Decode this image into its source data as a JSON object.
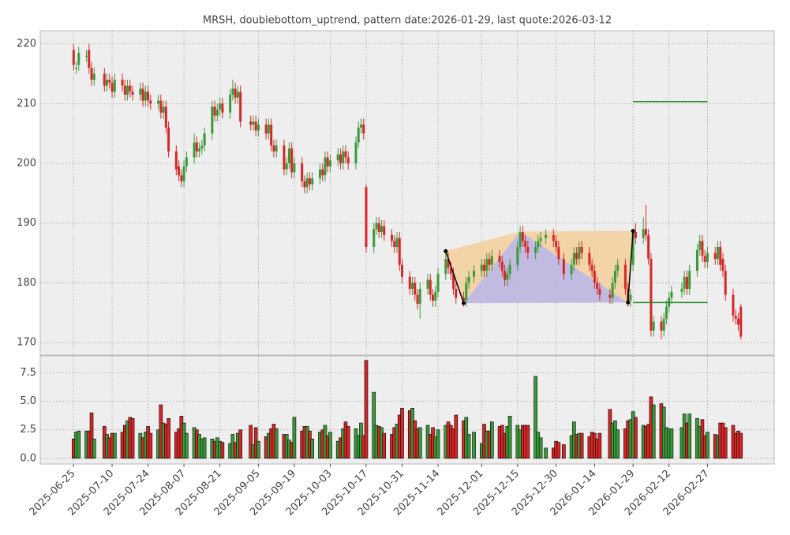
{
  "chart_data": {
    "type": "candlestick",
    "title": "MRSH, doublebottom_uptrend, pattern date:2026-01-29, last quote:2026-03-12",
    "x": [
      "2025-06-25",
      "2025-06-26",
      "2025-06-27",
      "2025-06-30",
      "2025-07-01",
      "2025-07-02",
      "2025-07-03",
      "2025-07-07",
      "2025-07-08",
      "2025-07-09",
      "2025-07-10",
      "2025-07-11",
      "2025-07-14",
      "2025-07-15",
      "2025-07-16",
      "2025-07-17",
      "2025-07-18",
      "2025-07-21",
      "2025-07-22",
      "2025-07-23",
      "2025-07-24",
      "2025-07-25",
      "2025-07-28",
      "2025-07-29",
      "2025-07-30",
      "2025-07-31",
      "2025-08-01",
      "2025-08-04",
      "2025-08-05",
      "2025-08-06",
      "2025-08-07",
      "2025-08-08",
      "2025-08-11",
      "2025-08-12",
      "2025-08-13",
      "2025-08-14",
      "2025-08-15",
      "2025-08-18",
      "2025-08-19",
      "2025-08-20",
      "2025-08-21",
      "2025-08-22",
      "2025-08-25",
      "2025-08-26",
      "2025-08-27",
      "2025-08-28",
      "2025-08-29",
      "2025-09-02",
      "2025-09-03",
      "2025-09-04",
      "2025-09-05",
      "2025-09-08",
      "2025-09-09",
      "2025-09-10",
      "2025-09-11",
      "2025-09-12",
      "2025-09-15",
      "2025-09-16",
      "2025-09-17",
      "2025-09-18",
      "2025-09-19",
      "2025-09-22",
      "2025-09-23",
      "2025-09-24",
      "2025-09-25",
      "2025-09-26",
      "2025-09-29",
      "2025-09-30",
      "2025-10-01",
      "2025-10-02",
      "2025-10-03",
      "2025-10-06",
      "2025-10-07",
      "2025-10-08",
      "2025-10-09",
      "2025-10-10",
      "2025-10-13",
      "2025-10-14",
      "2025-10-15",
      "2025-10-16",
      "2025-10-17",
      "2025-10-20",
      "2025-10-21",
      "2025-10-22",
      "2025-10-23",
      "2025-10-24",
      "2025-10-27",
      "2025-10-28",
      "2025-10-29",
      "2025-10-30",
      "2025-10-31",
      "2025-11-03",
      "2025-11-04",
      "2025-11-05",
      "2025-11-06",
      "2025-11-07",
      "2025-11-10",
      "2025-11-11",
      "2025-11-12",
      "2025-11-13",
      "2025-11-14",
      "2025-11-17",
      "2025-11-18",
      "2025-11-19",
      "2025-11-20",
      "2025-11-21",
      "2025-11-24",
      "2025-11-25",
      "2025-11-26",
      "2025-11-28",
      "2025-12-01",
      "2025-12-02",
      "2025-12-03",
      "2025-12-04",
      "2025-12-05",
      "2025-12-08",
      "2025-12-09",
      "2025-12-10",
      "2025-12-11",
      "2025-12-12",
      "2025-12-15",
      "2025-12-16",
      "2025-12-17",
      "2025-12-18",
      "2025-12-19",
      "2025-12-22",
      "2025-12-23",
      "2025-12-24",
      "2025-12-26",
      "2025-12-29",
      "2025-12-30",
      "2025-12-31",
      "2026-01-02",
      "2026-01-05",
      "2026-01-06",
      "2026-01-07",
      "2026-01-08",
      "2026-01-09",
      "2026-01-12",
      "2026-01-13",
      "2026-01-14",
      "2026-01-15",
      "2026-01-16",
      "2026-01-20",
      "2026-01-21",
      "2026-01-22",
      "2026-01-23",
      "2026-01-26",
      "2026-01-27",
      "2026-01-28",
      "2026-01-29",
      "2026-01-30",
      "2026-02-02",
      "2026-02-03",
      "2026-02-04",
      "2026-02-05",
      "2026-02-06",
      "2026-02-09",
      "2026-02-10",
      "2026-02-11",
      "2026-02-12",
      "2026-02-13",
      "2026-02-17",
      "2026-02-18",
      "2026-02-19",
      "2026-02-20",
      "2026-02-23",
      "2026-02-24",
      "2026-02-25",
      "2026-02-26",
      "2026-02-27",
      "2026-03-02",
      "2026-03-03",
      "2026-03-04",
      "2026-03-05",
      "2026-03-06",
      "2026-03-09",
      "2026-03-10",
      "2026-03-11",
      "2026-03-12"
    ],
    "open": [
      219,
      216,
      216.5,
      218,
      219,
      216,
      214,
      215,
      213,
      214,
      213.5,
      212,
      214,
      213,
      211.5,
      213,
      212,
      211.5,
      212.5,
      210.5,
      212,
      210.5,
      210,
      210.5,
      208.5,
      209.5,
      206,
      202,
      199.5,
      198,
      197,
      199.5,
      201,
      203.5,
      202,
      202.5,
      203,
      205,
      209.5,
      208,
      209,
      210,
      208.5,
      211.5,
      212.5,
      211,
      212,
      207,
      206.5,
      207,
      205.5,
      206.5,
      205,
      206.5,
      203,
      202,
      203,
      199,
      200,
      202.5,
      198.5,
      200,
      197,
      196,
      197.5,
      196.5,
      197.5,
      199,
      198,
      201,
      199.5,
      200.5,
      201.5,
      200,
      202,
      201,
      200,
      203.5,
      206,
      206.5,
      196,
      186,
      189,
      190,
      188.5,
      189.5,
      188,
      187,
      186,
      187.5,
      183,
      181,
      179,
      180,
      178,
      176.5,
      179,
      180.5,
      178,
      177,
      178.5,
      181.5,
      184,
      182.5,
      181.5,
      179,
      177.5,
      177,
      180,
      181,
      182,
      183,
      182,
      184,
      183,
      184.5,
      183.5,
      182,
      180.5,
      181.5,
      183,
      186,
      188.5,
      187,
      186,
      185,
      186,
      187,
      187.5,
      188,
      187,
      186,
      184,
      181.5,
      183,
      185,
      184,
      186,
      185,
      183,
      182,
      180,
      179,
      178,
      177.5,
      180,
      182,
      183,
      179,
      177,
      183,
      188.5,
      187.5,
      189,
      188,
      184,
      172,
      173.5,
      172,
      174,
      176,
      177.5,
      178.5,
      179,
      181,
      179,
      182,
      185.5,
      187,
      184.5,
      183.5,
      185,
      184,
      186,
      184,
      182,
      178,
      174.5,
      174,
      176
    ],
    "high": [
      220,
      217,
      219.5,
      219,
      220,
      217,
      216,
      216,
      215,
      215,
      214.5,
      215,
      215,
      214,
      214,
      214,
      213,
      213.5,
      213.5,
      213,
      213,
      211.5,
      211.5,
      211.5,
      210.5,
      210.5,
      207,
      203,
      200.5,
      199,
      200.5,
      202,
      205,
      204.5,
      203.5,
      204,
      206,
      210.5,
      210.5,
      210,
      211,
      211,
      212.5,
      214,
      213.5,
      213,
      213,
      208,
      208,
      208,
      207.5,
      207.5,
      207.5,
      207.5,
      204,
      204,
      204,
      201,
      203.5,
      203.5,
      201,
      201,
      198,
      198.5,
      198.5,
      198.5,
      200,
      200,
      202,
      202,
      201.5,
      202.5,
      202.5,
      203,
      203,
      202,
      204.5,
      207,
      207.5,
      207.5,
      196.5,
      190,
      191,
      191,
      190.5,
      190.5,
      189,
      188,
      188.5,
      188.5,
      184,
      182,
      181,
      181,
      179,
      180,
      181.5,
      181.5,
      179,
      179.5,
      182.5,
      185,
      185,
      183.5,
      182.5,
      180,
      178.5,
      181,
      182,
      183,
      184,
      184,
      185,
      185,
      185.5,
      185.5,
      184.5,
      183,
      182.5,
      184,
      187,
      189.5,
      189.5,
      188,
      187,
      187,
      188,
      188.5,
      189,
      189,
      188,
      187,
      185,
      184,
      186,
      186,
      187,
      187,
      186,
      184,
      183,
      181,
      180,
      179,
      181,
      183,
      184,
      184,
      180,
      179,
      189,
      190,
      191,
      193,
      189,
      185,
      174.5,
      174.5,
      175,
      177,
      178.5,
      179.5,
      180,
      182,
      182,
      183,
      186.5,
      188,
      188,
      185.5,
      186,
      186,
      187,
      187,
      185,
      183,
      179,
      175.5,
      175,
      176.5
    ],
    "low": [
      215.5,
      215,
      215.5,
      217,
      215,
      213,
      213,
      212,
      212,
      212.5,
      211,
      211,
      212,
      210.5,
      210.5,
      211,
      210.5,
      210.5,
      209.5,
      209.5,
      209.5,
      209,
      209,
      207.5,
      207.5,
      205,
      201,
      198,
      197,
      196,
      196,
      198.5,
      200,
      201,
      201,
      201.5,
      202,
      204,
      207,
      207,
      208,
      207.5,
      207.5,
      210.5,
      210,
      210,
      206,
      205.5,
      205.5,
      204.5,
      204.5,
      204,
      204,
      202,
      201,
      201,
      198,
      198,
      199,
      197.5,
      197.5,
      196,
      195,
      195,
      195.5,
      195.5,
      196.5,
      197,
      197,
      198.5,
      198.5,
      199.5,
      199,
      199,
      200,
      199,
      199,
      202.5,
      205,
      204,
      185,
      185,
      188,
      187.5,
      187.5,
      187,
      186,
      185,
      185,
      182,
      180,
      178,
      178,
      177,
      175.5,
      174,
      178,
      177,
      176,
      176,
      177.5,
      180.5,
      181.5,
      180.5,
      178,
      176.5,
      176,
      176,
      179,
      180,
      181,
      181,
      181,
      182,
      182,
      182.5,
      181,
      179.5,
      179.5,
      180.5,
      182,
      185,
      186,
      185,
      184,
      184,
      185,
      186,
      186.5,
      186,
      185,
      183,
      180.5,
      180.5,
      182,
      183,
      183,
      184,
      182,
      181,
      179,
      178,
      177,
      176.5,
      176.5,
      179,
      181,
      178,
      176,
      176,
      182,
      186.5,
      186.5,
      187,
      183,
      171,
      171,
      170.5,
      171,
      173,
      175,
      176.5,
      177.5,
      178,
      178,
      178,
      181,
      184.5,
      183.5,
      182.5,
      182.5,
      183,
      183,
      182,
      181,
      177,
      173.5,
      173,
      172,
      170.5
    ],
    "close": [
      216.5,
      216,
      218.5,
      218,
      216,
      214,
      215,
      213,
      214,
      213.5,
      212,
      214,
      213,
      211.5,
      213,
      212,
      211.5,
      212.5,
      210.5,
      212,
      210.5,
      210,
      210.5,
      208.5,
      209.5,
      206,
      202,
      199,
      198,
      197,
      199.5,
      201,
      203.5,
      202,
      202.5,
      203,
      205,
      209.5,
      208,
      209,
      210,
      208.5,
      211.5,
      212.5,
      211,
      212,
      207,
      206.5,
      207,
      205.5,
      206.5,
      205,
      206.5,
      203,
      202,
      203,
      199,
      200,
      202.5,
      198.5,
      200,
      197,
      196,
      197.5,
      196.5,
      197.5,
      199,
      198,
      201,
      199.5,
      200.5,
      201.5,
      200,
      202,
      201,
      200,
      203.5,
      206,
      206.5,
      205,
      186,
      189,
      190,
      188.5,
      189.5,
      188,
      187,
      186,
      187.5,
      183,
      181,
      179,
      180,
      178,
      176.5,
      179,
      180.5,
      178,
      177,
      178.5,
      181.5,
      184,
      182.5,
      181.5,
      179,
      177.5,
      177,
      180,
      181,
      182,
      183,
      182,
      184,
      183,
      184.5,
      183.5,
      182,
      180.5,
      181.5,
      183,
      186,
      188.5,
      187,
      186,
      185,
      186,
      187,
      187.5,
      188,
      187,
      186,
      184,
      181.5,
      183,
      185,
      184,
      186,
      185,
      183,
      182,
      180,
      179,
      178,
      177.5,
      180,
      182,
      183,
      179,
      177,
      178,
      188.5,
      187.5,
      189,
      188,
      184,
      172,
      173.5,
      172,
      174,
      176,
      177.5,
      178.5,
      179,
      181,
      179,
      182,
      185.5,
      187,
      184.5,
      183.5,
      185,
      184,
      186,
      183,
      182,
      178,
      174.5,
      174,
      173,
      171
    ],
    "volume": [
      1.7,
      2.3,
      2.4,
      2.4,
      2.4,
      4.0,
      1.7,
      2.8,
      2.1,
      1.8,
      2.2,
      2.2,
      2.3,
      2.9,
      3.3,
      3.6,
      3.5,
      2.2,
      1.8,
      2.3,
      2.8,
      2.2,
      2.5,
      4.7,
      3.1,
      3.0,
      3.5,
      2.3,
      2.6,
      3.7,
      3.1,
      2.2,
      2.7,
      2.5,
      2.1,
      1.7,
      1.8,
      1.7,
      1.5,
      1.8,
      1.5,
      1.4,
      1.3,
      2.1,
      1.4,
      2.2,
      2.5,
      2.9,
      1.2,
      2.7,
      1.5,
      1.9,
      2.2,
      2.6,
      3.0,
      2.6,
      2.1,
      2.1,
      1.6,
      1.4,
      3.6,
      2.4,
      2.8,
      2.8,
      2.4,
      1.7,
      2.3,
      2.5,
      2.9,
      2.0,
      2.3,
      1.5,
      1.8,
      2.6,
      3.2,
      2.8,
      2.6,
      2.0,
      3.1,
      2.0,
      8.6,
      5.8,
      2.9,
      2.8,
      2.7,
      2.2,
      2.1,
      2.7,
      3.0,
      3.8,
      4.4,
      4.2,
      4.4,
      3.3,
      2.6,
      2.7,
      2.9,
      2.1,
      2.7,
      1.9,
      2.5,
      2.9,
      3.2,
      2.9,
      2.6,
      3.8,
      3.3,
      3.6,
      2.1,
      2.3,
      1.3,
      3.0,
      2.4,
      2.4,
      3.2,
      2.8,
      2.9,
      2.2,
      2.8,
      3.7,
      2.9,
      2.5,
      2.9,
      2.9,
      2.9,
      7.2,
      2.3,
      1.8,
      0.9,
      0.9,
      1.5,
      1.4,
      1.2,
      2.0,
      3.2,
      2.1,
      2.2,
      2.2,
      1.9,
      2.3,
      2.2,
      1.7,
      2.2,
      4.3,
      3.1,
      3.3,
      2.5,
      2.6,
      3.3,
      3.4,
      4.1,
      3.6,
      2.9,
      2.8,
      3.0,
      5.4,
      4.7,
      4.8,
      4.5,
      2.7,
      2.6,
      2.6,
      2.7,
      3.9,
      3.1,
      3.9,
      3.5,
      2.8,
      3.4,
      2.0,
      2.3,
      2.1,
      2.0,
      3.1,
      3.1,
      2.7,
      2.9,
      2.2,
      2.4,
      2.2
    ],
    "up_color": "#3a9a3a",
    "down_color": "#d62728",
    "xlim": [
      "2025-06-12",
      "2026-03-25"
    ],
    "xticks": [
      "2025-06-25",
      "2025-07-10",
      "2025-07-24",
      "2025-08-07",
      "2025-08-21",
      "2025-09-05",
      "2025-09-19",
      "2025-10-03",
      "2025-10-17",
      "2025-10-31",
      "2025-11-14",
      "2025-12-01",
      "2025-12-15",
      "2025-12-30",
      "2026-01-14",
      "2026-01-29",
      "2026-02-12",
      "2026-02-27"
    ],
    "ylim": [
      167.9,
      222.2
    ],
    "yticks": [
      170,
      180,
      190,
      200,
      210,
      220
    ],
    "volume_ylim": [
      -0.5,
      9.0
    ],
    "volume_yticks": [
      {
        "value": 0,
        "label": "0.0"
      },
      2.5,
      {
        "value": 5,
        "label": "5.0"
      },
      7.5
    ],
    "grid": true,
    "pattern": {
      "points": [
        {
          "date": "2025-11-17",
          "price": 185.3
        },
        {
          "date": "2025-11-24",
          "price": 176.6
        },
        {
          "date": "2025-12-16",
          "price": 188.6
        },
        {
          "date": "2026-01-27",
          "price": 176.7
        },
        {
          "date": "2026-01-29",
          "price": 188.7
        }
      ],
      "outer_color": "#f5c98a",
      "inner_color": "#b4b4f0",
      "line_color": "#000000"
    },
    "levels": [
      {
        "value": 210.35,
        "start": "2026-01-29",
        "end": "2026-02-27",
        "color": "#228b22"
      },
      {
        "value": 176.7,
        "start": "2026-01-29",
        "end": "2026-02-27",
        "color": "#228b22"
      }
    ]
  }
}
